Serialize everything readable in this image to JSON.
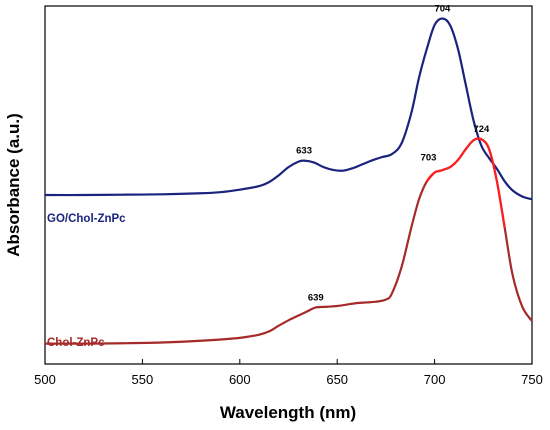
{
  "chart_data": {
    "type": "line",
    "title": "",
    "xlabel": "Wavelength (nm)",
    "ylabel": "Absorbance (a.u.)",
    "xlim": [
      500,
      750
    ],
    "ylim": [
      0,
      1
    ],
    "x_ticks": [
      500,
      550,
      600,
      650,
      700,
      750
    ],
    "y_ticks_shown": false,
    "grid": false,
    "legend": "inline labels",
    "series": [
      {
        "name": "GO/Chol-ZnPc",
        "color": "#1a237e",
        "x": [
          500,
          520,
          540,
          560,
          580,
          590,
          600,
          610,
          615,
          620,
          625,
          630,
          633,
          638,
          643,
          648,
          653,
          658,
          663,
          668,
          673,
          678,
          683,
          688,
          692,
          696,
          700,
          704,
          708,
          712,
          716,
          720,
          724,
          728,
          732,
          736,
          740,
          745,
          750
        ],
        "y": [
          0.472,
          0.472,
          0.473,
          0.474,
          0.477,
          0.48,
          0.487,
          0.497,
          0.508,
          0.527,
          0.55,
          0.565,
          0.568,
          0.563,
          0.55,
          0.542,
          0.54,
          0.547,
          0.558,
          0.569,
          0.578,
          0.586,
          0.616,
          0.7,
          0.8,
          0.88,
          0.947,
          0.965,
          0.946,
          0.88,
          0.78,
          0.68,
          0.61,
          0.575,
          0.545,
          0.51,
          0.485,
          0.468,
          0.46
        ]
      },
      {
        "name": "Chol-ZnPc",
        "color": "#a52a2a",
        "highlight_color": "#ff1f1f",
        "x": [
          500,
          520,
          540,
          560,
          580,
          600,
          610,
          615,
          620,
          625,
          630,
          635,
          639,
          645,
          650,
          655,
          660,
          665,
          670,
          675,
          678,
          683,
          688,
          692,
          696,
          700,
          703,
          708,
          712,
          716,
          720,
          724,
          728,
          732,
          736,
          740,
          745,
          750
        ],
        "y": [
          0.057,
          0.057,
          0.058,
          0.06,
          0.065,
          0.073,
          0.082,
          0.091,
          0.107,
          0.122,
          0.135,
          0.148,
          0.158,
          0.16,
          0.162,
          0.166,
          0.17,
          0.172,
          0.174,
          0.18,
          0.196,
          0.27,
          0.38,
          0.46,
          0.51,
          0.535,
          0.54,
          0.55,
          0.57,
          0.6,
          0.625,
          0.628,
          0.6,
          0.51,
          0.38,
          0.25,
          0.16,
          0.12
        ]
      }
    ],
    "annotations": [
      {
        "text": "704",
        "x": 704,
        "y": 0.965,
        "series": "GO/Chol-ZnPc"
      },
      {
        "text": "633",
        "x": 633,
        "y": 0.568,
        "series": "GO/Chol-ZnPc"
      },
      {
        "text": "724",
        "x": 724,
        "y": 0.628,
        "series": "Chol-ZnPc"
      },
      {
        "text": "703",
        "x": 703,
        "y": 0.54,
        "series": "Chol-ZnPc"
      },
      {
        "text": "639",
        "x": 639,
        "y": 0.158,
        "series": "Chol-ZnPc"
      }
    ]
  }
}
